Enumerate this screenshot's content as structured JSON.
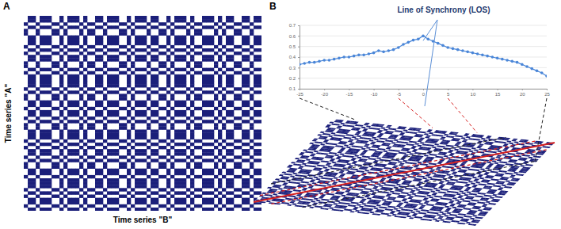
{
  "chart_data": [
    {
      "type": "heatmap",
      "panel_label": "A",
      "xlabel": "Time series \"B\"",
      "ylabel": "Time series \"A\"",
      "color": "#1b1f7a",
      "time_series_a": [
        1,
        1,
        0,
        1,
        0,
        0,
        1,
        1,
        1,
        0,
        1,
        0,
        1,
        1,
        0,
        0,
        1,
        0,
        1,
        1,
        1,
        1,
        0,
        1,
        0,
        0,
        1,
        1,
        0,
        1,
        1,
        0,
        1,
        0,
        0,
        1,
        1,
        1,
        0,
        1,
        0,
        1,
        1,
        0,
        1,
        0,
        0,
        1,
        1,
        0,
        1,
        1,
        1,
        0,
        1,
        0,
        1,
        1,
        0,
        1
      ],
      "time_series_b": [
        0,
        1,
        1,
        0,
        1,
        1,
        1,
        0,
        0,
        1,
        0,
        1,
        1,
        1,
        0,
        1,
        0,
        0,
        1,
        1,
        0,
        1,
        1,
        1,
        0,
        0,
        1,
        0,
        1,
        1,
        1,
        0,
        1,
        1,
        0,
        0,
        1,
        0,
        1,
        1,
        1,
        0,
        1,
        0,
        0,
        1,
        1,
        1,
        0,
        1,
        0,
        1,
        1,
        0,
        0,
        1,
        1,
        0,
        1,
        1
      ]
    },
    {
      "type": "line",
      "panel_label": "B",
      "annotation": "Line of Synchrony (LOS)",
      "color": "#4a86d8",
      "marker": "circle",
      "grid": true,
      "x": [
        -25,
        -24,
        -23,
        -22,
        -21,
        -20,
        -19,
        -18,
        -17,
        -16,
        -15,
        -14,
        -13,
        -12,
        -11,
        -10,
        -9,
        -8,
        -7,
        -6,
        -5,
        -4,
        -3,
        -2,
        -1,
        0,
        1,
        2,
        3,
        4,
        5,
        6,
        7,
        8,
        9,
        10,
        11,
        12,
        13,
        14,
        15,
        16,
        17,
        18,
        19,
        20,
        21,
        22,
        23,
        24,
        25
      ],
      "values": [
        0.33,
        0.34,
        0.35,
        0.35,
        0.36,
        0.37,
        0.37,
        0.38,
        0.39,
        0.4,
        0.4,
        0.41,
        0.42,
        0.42,
        0.43,
        0.44,
        0.46,
        0.45,
        0.46,
        0.47,
        0.49,
        0.52,
        0.54,
        0.56,
        0.57,
        0.6,
        0.57,
        0.55,
        0.53,
        0.51,
        0.49,
        0.48,
        0.47,
        0.46,
        0.45,
        0.44,
        0.43,
        0.42,
        0.41,
        0.4,
        0.39,
        0.38,
        0.37,
        0.36,
        0.35,
        0.33,
        0.31,
        0.29,
        0.27,
        0.25,
        0.22
      ],
      "xlim": [
        -25,
        25
      ],
      "xticks": [
        -25,
        -20,
        -15,
        -10,
        -5,
        0,
        5,
        10,
        15,
        20,
        25
      ],
      "ylim": [
        0.1,
        0.7
      ],
      "yticks": [
        0.1,
        0.2,
        0.3,
        0.4,
        0.5,
        0.6,
        0.7
      ]
    }
  ]
}
